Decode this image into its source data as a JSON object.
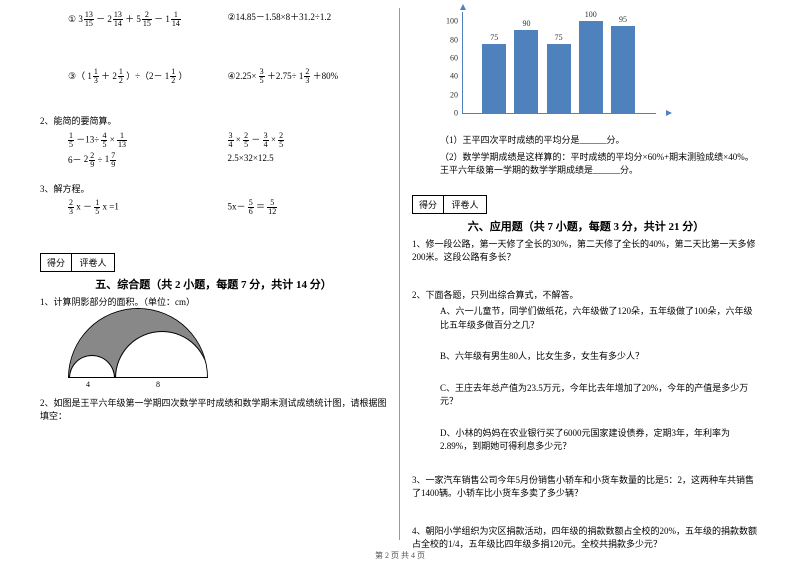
{
  "footer": "第 2 页 共 4 页",
  "left": {
    "eq1a": "①",
    "mix1": {
      "w": "3",
      "n": "13",
      "d": "15"
    },
    "mix2": {
      "w": "2",
      "n": "13",
      "d": "14"
    },
    "mix3": {
      "w": "5",
      "n": "2",
      "d": "15"
    },
    "mix4": {
      "w": "1",
      "n": "1",
      "d": "14"
    },
    "eq1b": "②14.85－1.58×8＋31.2÷1.2",
    "eq2a_pre": "③（",
    "mix5": {
      "w": "1",
      "n": "1",
      "d": "3"
    },
    "mix6": {
      "w": "2",
      "n": "1",
      "d": "2"
    },
    "eq2a_mid": "）÷（2－",
    "mix7": {
      "w": "1",
      "n": "1",
      "d": "2"
    },
    "eq2a_post": "）",
    "eq2b_pre": "④2.25×",
    "f35": {
      "n": "3",
      "d": "5"
    },
    "eq2b_mid": "＋2.75÷",
    "mix8": {
      "w": "1",
      "n": "2",
      "d": "3"
    },
    "eq2b_post": "＋80%",
    "q2": "2、能简的要简算。",
    "f15": {
      "n": "1",
      "d": "5"
    },
    "f45": {
      "n": "4",
      "d": "5"
    },
    "f113": {
      "n": "1",
      "d": "13"
    },
    "f34": {
      "n": "3",
      "d": "4"
    },
    "f25": {
      "n": "2",
      "d": "5"
    },
    "mix9": {
      "w": "6",
      "n": "",
      "d": ""
    },
    "f29": {
      "n": "2",
      "d": "9"
    },
    "mix10": {
      "w": "1",
      "n": "7",
      "d": "9"
    },
    "eq_r2b": "2.5×32×12.5",
    "q3": "3、解方程。",
    "f23": {
      "n": "2",
      "d": "3"
    },
    "f15b": {
      "n": "1",
      "d": "5"
    },
    "eq3a_post": "x =1",
    "eq3b_pre": "5x－",
    "f56": {
      "n": "5",
      "d": "6"
    },
    "f512": {
      "n": "5",
      "d": "12"
    },
    "score_l": "得分",
    "score_r": "评卷人",
    "sec5": "五、综合题（共 2 小题，每题 7 分，共计 14 分）",
    "q5_1": "1、计算阴影部分的面积。（单位：cm）",
    "arc_a": "4",
    "arc_b": "8",
    "q5_2": "2、如图是王平六年级第一学期四次数学平时成绩和数学期末测试成绩统计图，请根据图填空："
  },
  "chart": {
    "ylabels": [
      "0",
      "20",
      "40",
      "60",
      "80",
      "100"
    ],
    "bars": [
      {
        "label": "75",
        "value": 75,
        "color": "#4f81bd"
      },
      {
        "label": "90",
        "value": 90,
        "color": "#4f81bd"
      },
      {
        "label": "75",
        "value": 75,
        "color": "#4f81bd"
      },
      {
        "label": "100",
        "value": 100,
        "color": "#4f81bd"
      },
      {
        "label": "95",
        "value": 95,
        "color": "#4f81bd"
      }
    ],
    "ymax": 110,
    "grid_color": "#cfcfcf"
  },
  "right": {
    "c1": "（1）王平四次平时成绩的平均分是______分。",
    "c2": "（2）数学学期成绩是这样算的：平时成绩的平均分×60%+期末测验成绩×40%。王平六年级第一学期的数学学期成绩是______分。",
    "score_l": "得分",
    "score_r": "评卷人",
    "sec6": "六、应用题（共 7 小题，每题 3 分，共计 21 分）",
    "q1": "1、修一段公路，第一天修了全长的30%，第二天修了全长的40%，第二天比第一天多修200米。这段公路有多长？",
    "q2": "2、下面各题，只列出综合算式，不解答。",
    "q2a": "A、六一儿童节，同学们做纸花，六年级做了120朵，五年级做了100朵，六年级比五年级多做百分之几？",
    "q2b": "B、六年级有男生80人，比女生多，女生有多少人？",
    "q2c": "C、王庄去年总产值为23.5万元，今年比去年增加了20%，今年的产值是多少万元？",
    "q2d": "D、小林的妈妈在农业银行买了6000元国家建设债券，定期3年，年利率为2.89%，到期她可得利息多少元？",
    "q3": "3、一家汽车销售公司今年5月份销售小轿车和小货车数量的比是5：2，这两种车共销售了1400辆。小轿车比小货车多卖了多少辆？",
    "q4": "4、朝阳小学组织为灾区捐款活动，四年级的捐款数额占全校的20%，五年级的捐款数额占全校的1/4，五年级比四年级多捐120元。全校共捐款多少元？"
  }
}
